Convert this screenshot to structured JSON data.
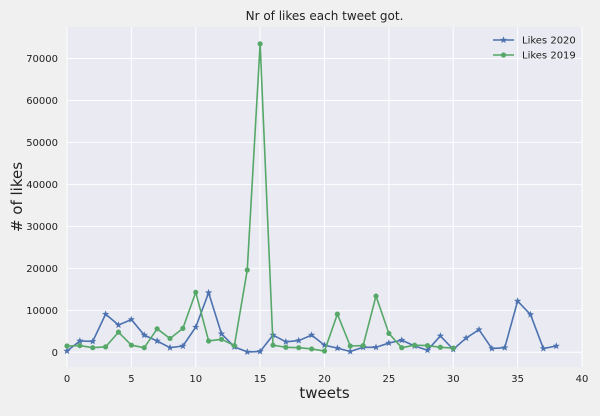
{
  "chart_data": {
    "type": "line",
    "title": "Nr of likes each tweet got.",
    "xlabel": "tweets",
    "ylabel": "# of likes",
    "xlim": [
      0,
      40
    ],
    "ylim": [
      -3500,
      77500
    ],
    "xticks": [
      0,
      5,
      10,
      15,
      20,
      25,
      30,
      35,
      40
    ],
    "yticks": [
      0,
      10000,
      20000,
      30000,
      40000,
      50000,
      60000,
      70000
    ],
    "grid": true,
    "legend_position": "top-right",
    "series": [
      {
        "name": "Likes 2020",
        "color": "#4c72b0",
        "marker": "star",
        "x": [
          0,
          1,
          2,
          3,
          4,
          5,
          6,
          7,
          8,
          9,
          10,
          11,
          12,
          13,
          14,
          15,
          16,
          17,
          18,
          19,
          20,
          21,
          22,
          23,
          24,
          25,
          26,
          27,
          28,
          29,
          30,
          31,
          32,
          33,
          34,
          35,
          36,
          37,
          38
        ],
        "y": [
          300,
          2700,
          2600,
          9100,
          6500,
          7800,
          4100,
          2700,
          1100,
          1500,
          6000,
          14200,
          4400,
          1300,
          100,
          200,
          4100,
          2500,
          2800,
          4100,
          1700,
          1000,
          200,
          1200,
          1200,
          2200,
          2900,
          1500,
          500,
          3900,
          700,
          3400,
          5400,
          900,
          1100,
          12200,
          9000,
          900,
          1500
        ]
      },
      {
        "name": "Likes 2019",
        "color": "#55a868",
        "marker": "circle",
        "x": [
          0,
          1,
          2,
          3,
          4,
          5,
          6,
          7,
          8,
          9,
          10,
          11,
          12,
          13,
          14,
          15,
          16,
          17,
          18,
          19,
          20,
          21,
          22,
          23,
          24,
          25,
          26,
          27,
          28,
          29,
          30
        ],
        "y": [
          1500,
          1600,
          1100,
          1300,
          4800,
          1700,
          1100,
          5600,
          3300,
          5700,
          14300,
          2700,
          3100,
          1600,
          19600,
          73500,
          1700,
          1200,
          1100,
          800,
          300,
          9100,
          1500,
          1600,
          13400,
          4500,
          1100,
          1700,
          1600,
          1200,
          1000
        ]
      }
    ]
  }
}
